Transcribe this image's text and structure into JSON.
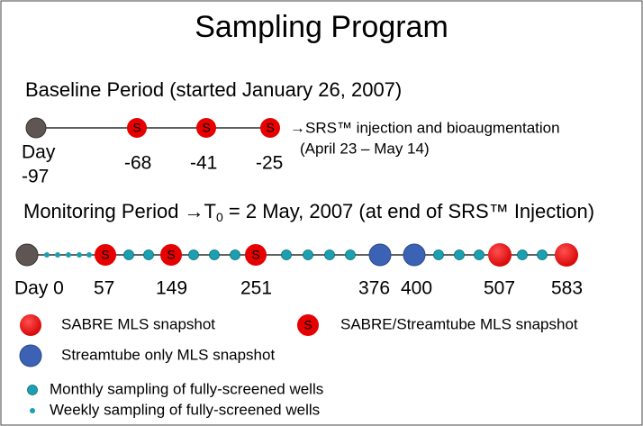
{
  "title": "Sampling Program",
  "symbol_letter": "S",
  "baseline": {
    "heading": "Baseline Period (started January 26, 2007)",
    "note_line1": "→SRS™ injection and bioaugmentation",
    "note_line2": "(April 23 – May 14)",
    "day_word": "Day",
    "labels": [
      "-97",
      "-68",
      "-41",
      "-25"
    ]
  },
  "monitoring": {
    "heading_part1": "Monitoring Period  →T",
    "heading_subscript": "0",
    "heading_part2": " = 2 May, 2007 (at end of SRS™ Injection)",
    "labels": [
      "Day 0",
      "57",
      "149",
      "251",
      "376",
      "400",
      "507",
      "583"
    ]
  },
  "legend": {
    "sabre": "SABRE MLS snapshot",
    "sabre_streamtube": "SABRE/Streamtube MLS snapshot",
    "streamtube": "Streamtube only MLS snapshot",
    "monthly": "Monthly sampling of fully-screened wells",
    "weekly": "Weekly sampling of fully-screened wells"
  }
}
